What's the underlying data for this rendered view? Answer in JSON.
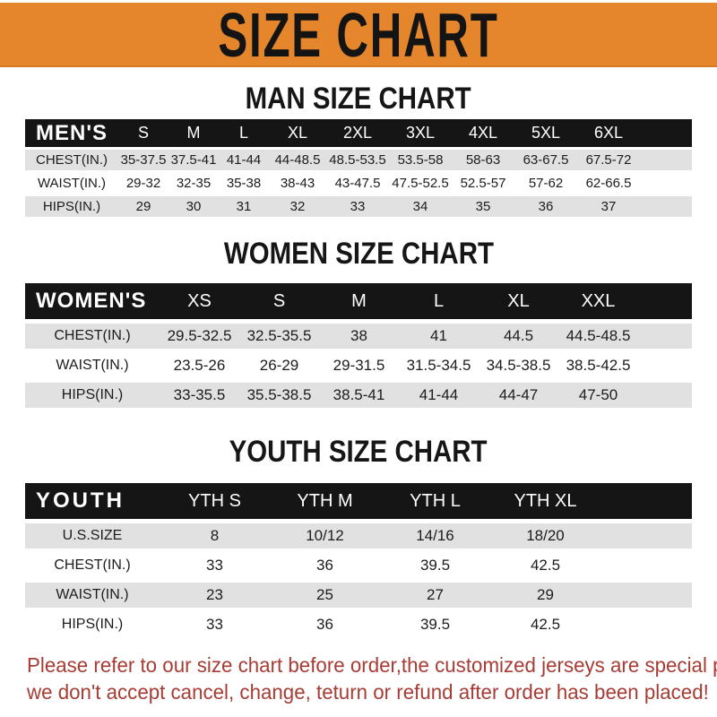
{
  "banner": {
    "title": "SIZE CHART"
  },
  "sections": [
    {
      "id": "men",
      "title": "MAN SIZE CHART",
      "header_label": "MEN'S",
      "columns": [
        "S",
        "M",
        "L",
        "XL",
        "2XL",
        "3XL",
        "4XL",
        "5XL",
        "6XL"
      ],
      "rows": [
        {
          "label": "CHEST(IN.)",
          "values": [
            "35-37.5",
            "37.5-41",
            "41-44",
            "44-48.5",
            "48.5-53.5",
            "53.5-58",
            "58-63",
            "63-67.5",
            "67.5-72"
          ]
        },
        {
          "label": "WAIST(IN.)",
          "values": [
            "29-32",
            "32-35",
            "35-38",
            "38-43",
            "43-47.5",
            "47.5-52.5",
            "52.5-57",
            "57-62",
            "62-66.5"
          ]
        },
        {
          "label": "HIPS(IN.)",
          "values": [
            "29",
            "30",
            "31",
            "32",
            "33",
            "34",
            "35",
            "36",
            "37"
          ]
        }
      ]
    },
    {
      "id": "women",
      "title": "WOMEN SIZE CHART",
      "header_label": "WOMEN'S",
      "columns": [
        "XS",
        "S",
        "M",
        "L",
        "XL",
        "XXL"
      ],
      "rows": [
        {
          "label": "CHEST(IN.)",
          "values": [
            "29.5-32.5",
            "32.5-35.5",
            "38",
            "41",
            "44.5",
            "44.5-48.5"
          ]
        },
        {
          "label": "WAIST(IN.)",
          "values": [
            "23.5-26",
            "26-29",
            "29-31.5",
            "31.5-34.5",
            "34.5-38.5",
            "38.5-42.5"
          ]
        },
        {
          "label": "HIPS(IN.)",
          "values": [
            "33-35.5",
            "35.5-38.5",
            "38.5-41",
            "41-44",
            "44-47",
            "47-50"
          ]
        }
      ]
    },
    {
      "id": "youth",
      "title": "YOUTH SIZE CHART",
      "header_label": "YOUTH",
      "columns": [
        "YTH S",
        "YTH M",
        "YTH L",
        "YTH XL"
      ],
      "rows": [
        {
          "label": "U.S.SIZE",
          "values": [
            "8",
            "10/12",
            "14/16",
            "18/20"
          ]
        },
        {
          "label": "CHEST(IN.)",
          "values": [
            "33",
            "36",
            "39.5",
            "42.5"
          ]
        },
        {
          "label": "WAIST(IN.)",
          "values": [
            "23",
            "25",
            "27",
            "29"
          ]
        },
        {
          "label": "HIPS(IN.)",
          "values": [
            "33",
            "36",
            "39.5",
            "42.5"
          ]
        }
      ]
    }
  ],
  "footer": {
    "line1": "Please refer to our size chart before order,the customized jerseys are special products,",
    "line2": "we don't accept cancel, change, teturn or refund after order has been placed!"
  },
  "theme": {
    "banner_bg": "#E5862C",
    "bar_bg": "#151515",
    "header_text": "#FFFFFF",
    "stripe": "#E1E1E1",
    "text": "#1C1C1C",
    "notice": "#A73C35"
  }
}
